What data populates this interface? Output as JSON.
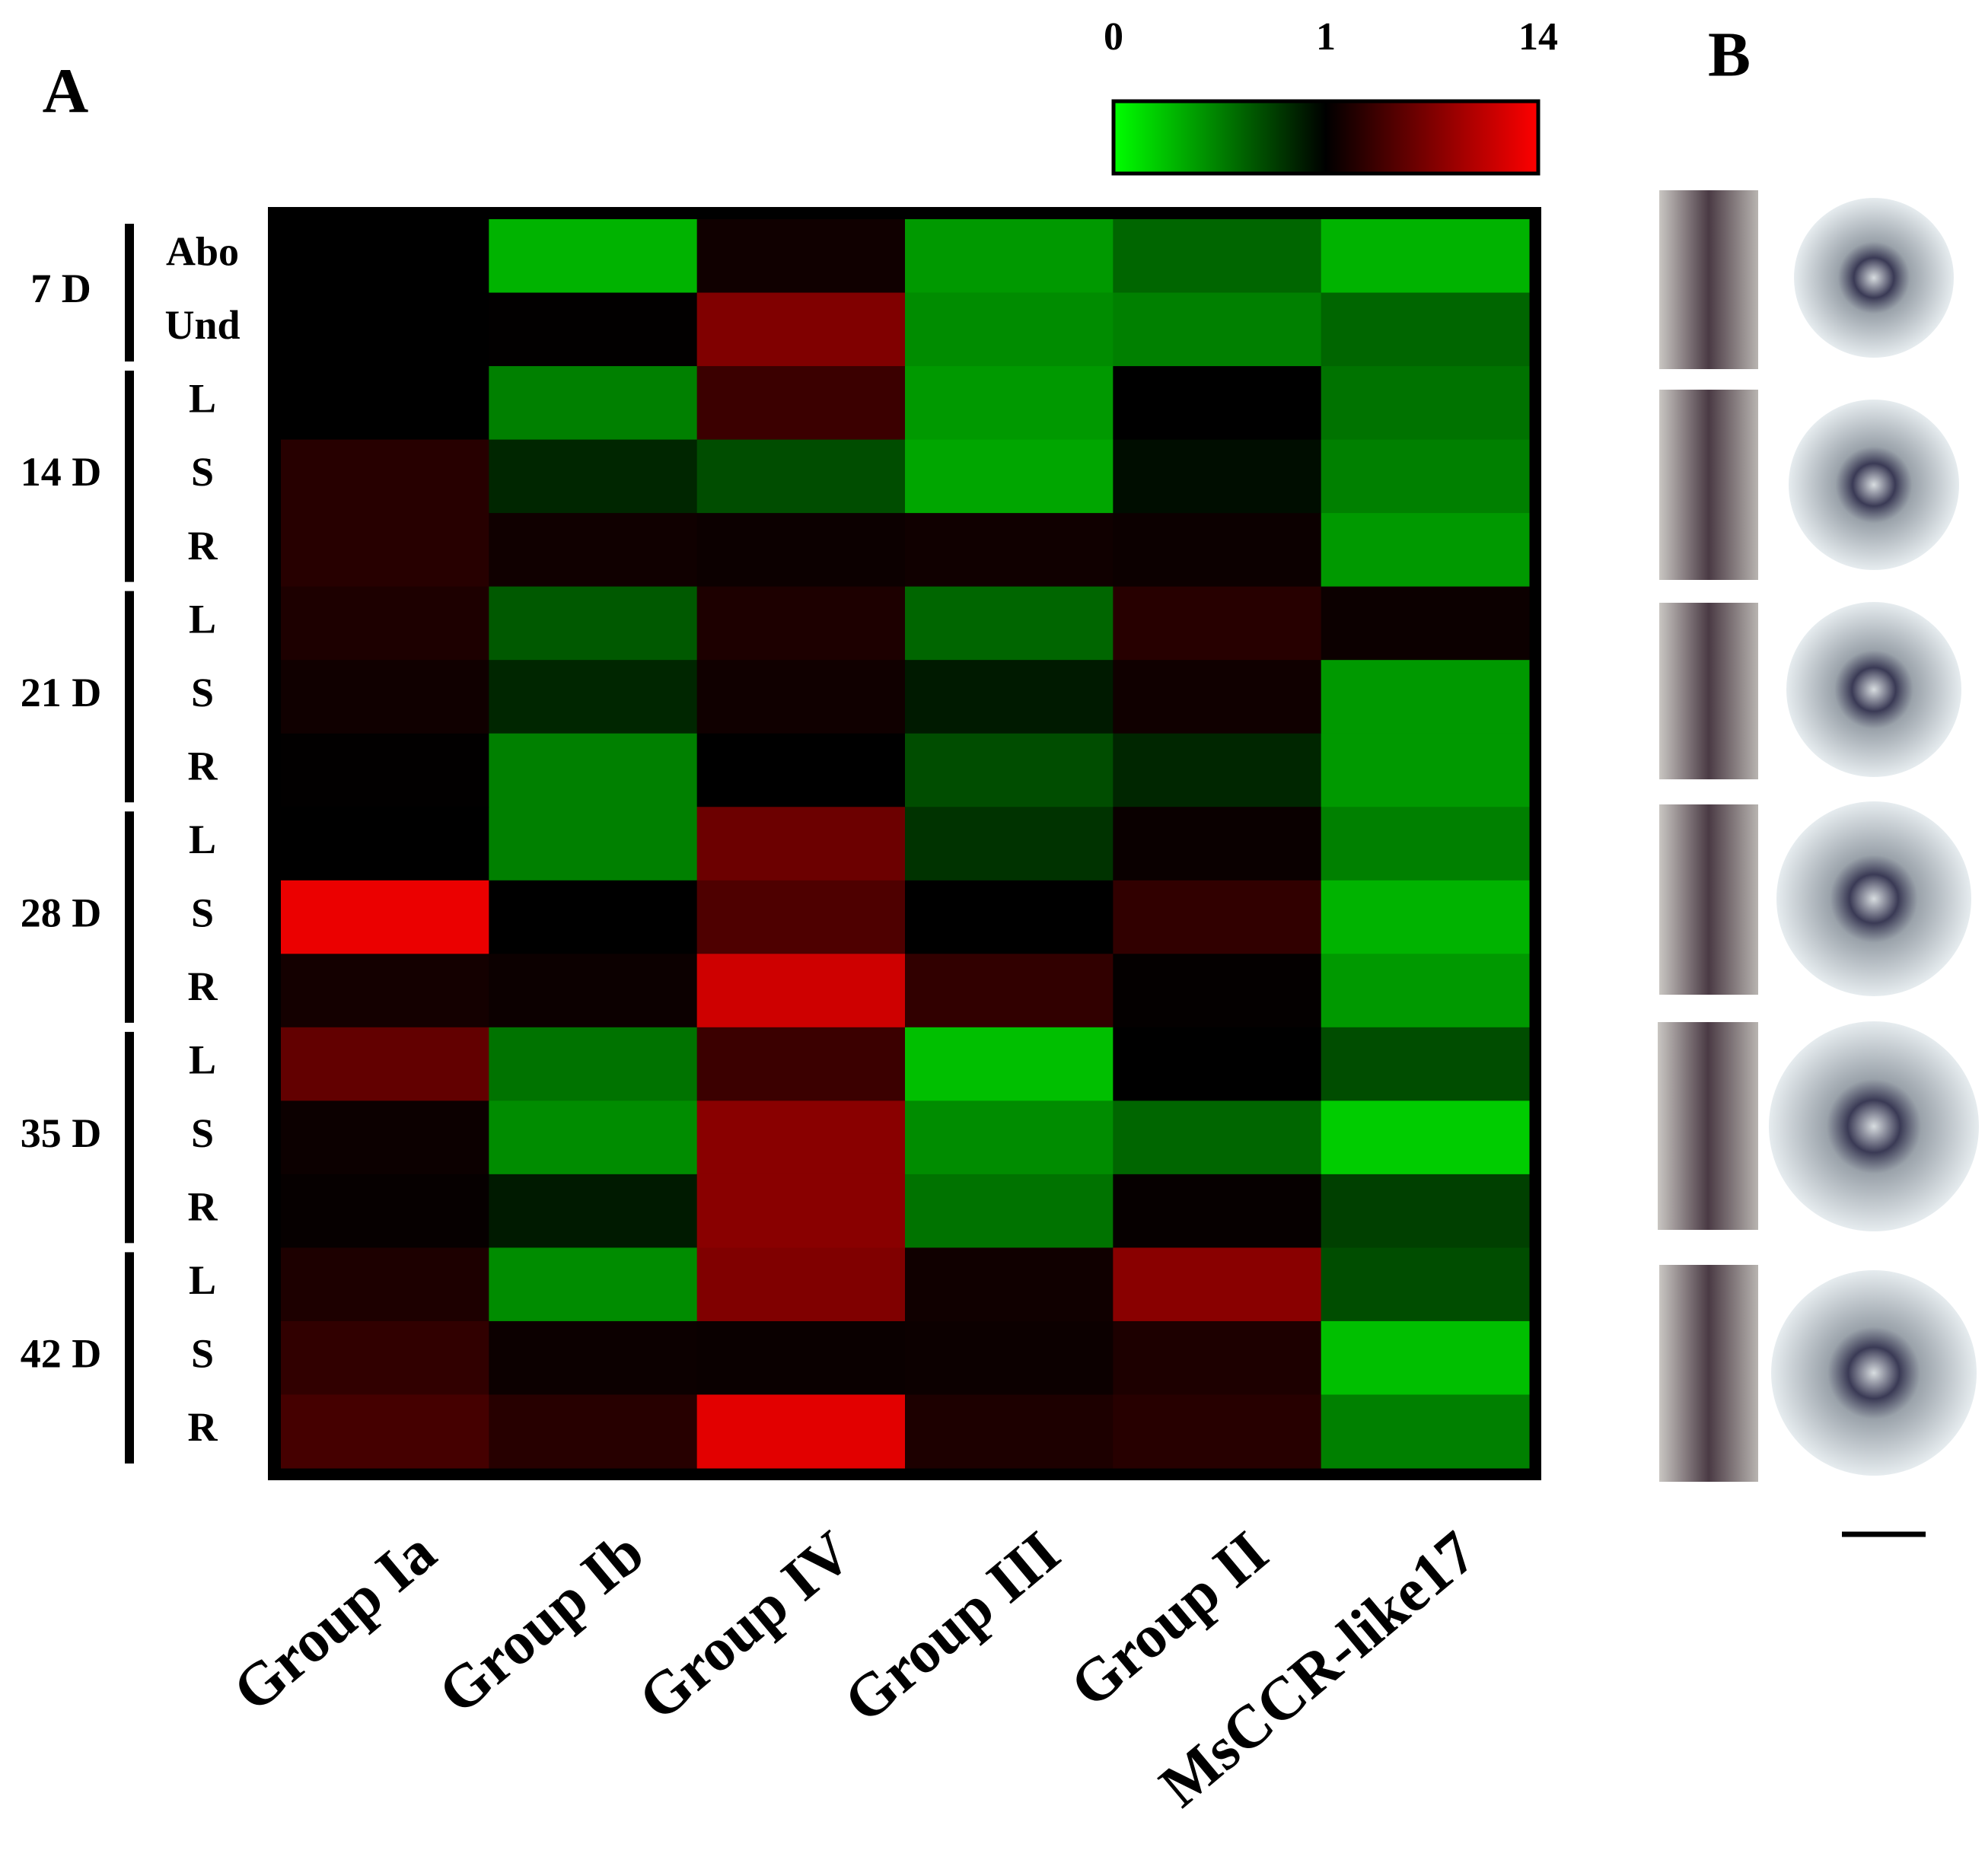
{
  "chart_data": {
    "type": "heatmap",
    "panels": [
      "A",
      "B"
    ],
    "categories": [
      "Group Ia",
      "Group Ib",
      "Group IV",
      "Group III",
      "Group II",
      "MsCCR-like17"
    ],
    "row_groups": [
      {
        "name": "7 D",
        "rows": [
          "Abo",
          "Und"
        ]
      },
      {
        "name": "14 D",
        "rows": [
          "L",
          "S",
          "R"
        ]
      },
      {
        "name": "21 D",
        "rows": [
          "L",
          "S",
          "R"
        ]
      },
      {
        "name": "28 D",
        "rows": [
          "L",
          "S",
          "R"
        ]
      },
      {
        "name": "35 D",
        "rows": [
          "L",
          "S",
          "R"
        ]
      },
      {
        "name": "42 D",
        "rows": [
          "L",
          "S",
          "R"
        ]
      }
    ],
    "values": [
      [
        1.0,
        0.3,
        1.8,
        0.4,
        0.6,
        0.3
      ],
      [
        1.0,
        1.1,
        7.5,
        0.45,
        0.5,
        0.6
      ],
      [
        1.0,
        0.5,
        4,
        0.4,
        1.0,
        0.55
      ],
      [
        3,
        0.85,
        0.7,
        0.35,
        0.95,
        0.5
      ],
      [
        3,
        1.8,
        1.6,
        1.8,
        1.6,
        0.4
      ],
      [
        2.5,
        0.65,
        2.5,
        0.6,
        3,
        1.6
      ],
      [
        1.8,
        0.85,
        1.8,
        0.9,
        1.8,
        0.4
      ],
      [
        1.1,
        0.5,
        1.0,
        0.7,
        0.85,
        0.4
      ],
      [
        1.0,
        0.5,
        6.5,
        0.8,
        1.5,
        0.5
      ],
      [
        13,
        1.0,
        5,
        1.0,
        3.5,
        0.3
      ],
      [
        2,
        1.6,
        11.5,
        3.5,
        1.2,
        0.4
      ],
      [
        6,
        0.55,
        4,
        0.25,
        1.0,
        0.7
      ],
      [
        1.6,
        0.45,
        8,
        0.45,
        0.6,
        0.2
      ],
      [
        1.3,
        0.9,
        8,
        0.55,
        1.3,
        0.75
      ],
      [
        2.5,
        0.45,
        7.5,
        1.8,
        8,
        0.7
      ],
      [
        3.5,
        1.6,
        1.5,
        1.6,
        2.5,
        0.25
      ],
      [
        4.5,
        3,
        12.5,
        2.5,
        3,
        0.5
      ]
    ],
    "colorbar_ticks": [
      0,
      1,
      14
    ],
    "colors": [
      "#00ff00",
      "#000000",
      "#ff0000"
    ]
  }
}
